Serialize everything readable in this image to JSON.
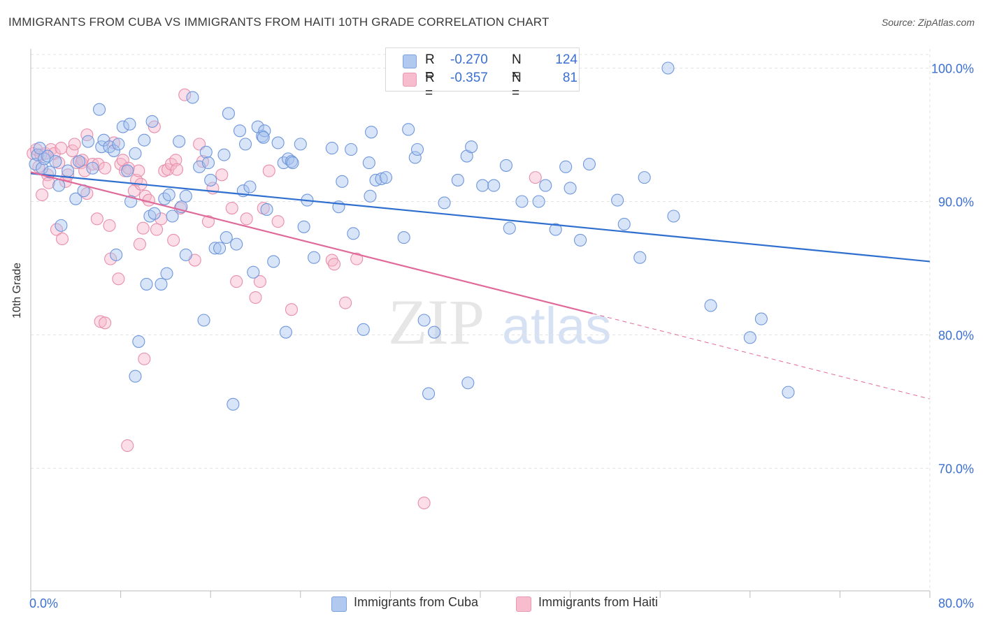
{
  "title": "IMMIGRANTS FROM CUBA VS IMMIGRANTS FROM HAITI 10TH GRADE CORRELATION CHART",
  "source": "Source: ZipAtlas.com",
  "watermark": {
    "zip": "ZIP",
    "atlas": "atlas"
  },
  "legend": {
    "r_label": "R =",
    "n_label": "N =",
    "cuba": {
      "r": "-0.270",
      "n": "124"
    },
    "haiti": {
      "r": "-0.357",
      "n": "81"
    }
  },
  "bottom_legend": {
    "cuba": "Immigrants from Cuba",
    "haiti": "Immigrants from Haiti"
  },
  "colors": {
    "cuba_fill": "#a9c4ee",
    "cuba_stroke": "#6f97dc",
    "cuba_line": "#2f6fd0",
    "haiti_fill": "#f7b6c9",
    "haiti_stroke": "#e88fab",
    "haiti_line": "#e0699a",
    "tick_label": "#3b6fd1",
    "grid": "#e3e3e3"
  },
  "chart_data": {
    "type": "scatter",
    "title": "IMMIGRANTS FROM CUBA VS IMMIGRANTS FROM HAITI 10TH GRADE CORRELATION CHART",
    "xlabel": "",
    "ylabel": "10th Grade",
    "xlim": [
      0,
      80
    ],
    "ylim": [
      60,
      102
    ],
    "x_tick_labels": [
      "0.0%",
      "80.0%"
    ],
    "y_ticks": [
      70,
      80,
      90,
      100
    ],
    "y_tick_labels": [
      "70.0%",
      "80.0%",
      "90.0%",
      "100.0%"
    ],
    "grid": true,
    "legend_position": "top-center",
    "series": [
      {
        "name": "Immigrants from Cuba",
        "r": -0.27,
        "n": 124,
        "trend": {
          "x": [
            0,
            80
          ],
          "y": [
            92.1,
            85.5
          ],
          "dashed_from": null
        },
        "points": [
          [
            0.4,
            92.8
          ],
          [
            0.6,
            93.5
          ],
          [
            0.8,
            94.0
          ],
          [
            1.0,
            92.5
          ],
          [
            1.2,
            93.2
          ],
          [
            1.5,
            93.4
          ],
          [
            1.7,
            92.2
          ],
          [
            2.2,
            93.0
          ],
          [
            2.5,
            91.2
          ],
          [
            2.7,
            88.2
          ],
          [
            3.3,
            92.3
          ],
          [
            4.0,
            90.2
          ],
          [
            4.3,
            93.0
          ],
          [
            4.7,
            90.8
          ],
          [
            5.1,
            94.5
          ],
          [
            5.5,
            92.5
          ],
          [
            6.1,
            96.9
          ],
          [
            6.3,
            94.1
          ],
          [
            6.5,
            94.6
          ],
          [
            7.0,
            94.1
          ],
          [
            7.4,
            93.8
          ],
          [
            7.6,
            86.0
          ],
          [
            7.8,
            94.3
          ],
          [
            8.2,
            95.6
          ],
          [
            8.6,
            92.3
          ],
          [
            8.8,
            95.8
          ],
          [
            8.9,
            90.0
          ],
          [
            9.3,
            93.6
          ],
          [
            9.6,
            79.5
          ],
          [
            9.3,
            76.9
          ],
          [
            10.1,
            94.6
          ],
          [
            10.3,
            83.8
          ],
          [
            10.6,
            88.9
          ],
          [
            10.8,
            96.0
          ],
          [
            11.0,
            89.1
          ],
          [
            11.6,
            83.8
          ],
          [
            11.9,
            90.2
          ],
          [
            12.1,
            84.6
          ],
          [
            12.3,
            90.5
          ],
          [
            12.6,
            88.9
          ],
          [
            13.2,
            94.5
          ],
          [
            13.4,
            89.6
          ],
          [
            13.8,
            90.4
          ],
          [
            13.8,
            86.0
          ],
          [
            14.4,
            97.8
          ],
          [
            15.0,
            92.6
          ],
          [
            15.4,
            81.1
          ],
          [
            15.6,
            93.7
          ],
          [
            15.8,
            92.9
          ],
          [
            16.0,
            91.6
          ],
          [
            16.4,
            86.5
          ],
          [
            16.8,
            86.5
          ],
          [
            17.2,
            93.5
          ],
          [
            17.4,
            87.3
          ],
          [
            17.6,
            96.6
          ],
          [
            18.0,
            74.8
          ],
          [
            18.3,
            86.8
          ],
          [
            18.6,
            95.3
          ],
          [
            18.9,
            90.8
          ],
          [
            19.1,
            94.3
          ],
          [
            19.5,
            91.1
          ],
          [
            19.8,
            84.7
          ],
          [
            20.2,
            95.6
          ],
          [
            20.6,
            94.9
          ],
          [
            20.8,
            95.3
          ],
          [
            21.0,
            89.4
          ],
          [
            21.6,
            85.5
          ],
          [
            22.0,
            94.4
          ],
          [
            22.5,
            92.9
          ],
          [
            22.9,
            93.2
          ],
          [
            23.2,
            93.0
          ],
          [
            22.7,
            80.2
          ],
          [
            24.0,
            94.3
          ],
          [
            24.3,
            88.1
          ],
          [
            24.6,
            90.1
          ],
          [
            25.2,
            85.8
          ],
          [
            26.8,
            94.0
          ],
          [
            27.4,
            89.6
          ],
          [
            27.7,
            91.5
          ],
          [
            28.5,
            93.9
          ],
          [
            28.7,
            87.6
          ],
          [
            29.6,
            80.4
          ],
          [
            30.1,
            92.9
          ],
          [
            30.2,
            90.4
          ],
          [
            30.3,
            95.2
          ],
          [
            30.7,
            91.6
          ],
          [
            31.2,
            91.7
          ],
          [
            31.6,
            91.8
          ],
          [
            33.6,
            95.4
          ],
          [
            33.2,
            87.3
          ],
          [
            34.2,
            93.3
          ],
          [
            34.4,
            93.9
          ],
          [
            35.0,
            81.1
          ],
          [
            35.4,
            75.6
          ],
          [
            35.9,
            80.2
          ],
          [
            36.8,
            89.9
          ],
          [
            38.0,
            91.6
          ],
          [
            38.8,
            93.4
          ],
          [
            39.2,
            94.1
          ],
          [
            38.9,
            76.4
          ],
          [
            40.2,
            91.2
          ],
          [
            41.2,
            91.2
          ],
          [
            42.3,
            92.7
          ],
          [
            42.6,
            88.0
          ],
          [
            43.7,
            90.0
          ],
          [
            45.2,
            90.0
          ],
          [
            45.8,
            91.2
          ],
          [
            46.7,
            87.9
          ],
          [
            47.6,
            92.6
          ],
          [
            48.0,
            91.0
          ],
          [
            48.9,
            87.1
          ],
          [
            49.7,
            92.8
          ],
          [
            52.2,
            90.1
          ],
          [
            52.8,
            88.3
          ],
          [
            54.2,
            85.8
          ],
          [
            54.6,
            91.8
          ],
          [
            56.7,
            100.0
          ],
          [
            57.2,
            88.9
          ],
          [
            60.5,
            82.2
          ],
          [
            64.0,
            79.8
          ],
          [
            65.0,
            81.2
          ],
          [
            67.4,
            75.7
          ],
          [
            20.7,
            94.8
          ],
          [
            23.3,
            92.9
          ]
        ]
      },
      {
        "name": "Immigrants from Haiti",
        "r": -0.357,
        "n": 81,
        "trend": {
          "x": [
            0,
            50,
            80
          ],
          "y": [
            92.2,
            81.6,
            75.2
          ],
          "dashed_from": 50
        },
        "points": [
          [
            0.2,
            93.6
          ],
          [
            0.5,
            93.9
          ],
          [
            0.7,
            92.6
          ],
          [
            0.9,
            93.5
          ],
          [
            1.0,
            90.5
          ],
          [
            1.3,
            93.6
          ],
          [
            1.5,
            92.0
          ],
          [
            1.6,
            91.4
          ],
          [
            1.8,
            93.9
          ],
          [
            2.1,
            93.6
          ],
          [
            2.3,
            87.9
          ],
          [
            2.5,
            92.9
          ],
          [
            2.7,
            94.0
          ],
          [
            2.8,
            87.2
          ],
          [
            3.1,
            91.5
          ],
          [
            3.3,
            92.0
          ],
          [
            3.7,
            93.8
          ],
          [
            3.9,
            94.3
          ],
          [
            4.1,
            92.9
          ],
          [
            4.5,
            92.9
          ],
          [
            4.6,
            93.1
          ],
          [
            4.8,
            92.3
          ],
          [
            5.0,
            90.6
          ],
          [
            5.0,
            95.0
          ],
          [
            5.5,
            92.8
          ],
          [
            5.9,
            88.7
          ],
          [
            6.0,
            92.8
          ],
          [
            6.2,
            81.0
          ],
          [
            6.6,
            92.5
          ],
          [
            6.6,
            80.9
          ],
          [
            7.0,
            88.2
          ],
          [
            7.1,
            85.7
          ],
          [
            7.4,
            94.4
          ],
          [
            7.8,
            84.2
          ],
          [
            8.0,
            92.8
          ],
          [
            8.2,
            93.1
          ],
          [
            8.4,
            92.3
          ],
          [
            8.6,
            71.7
          ],
          [
            8.7,
            92.5
          ],
          [
            9.2,
            90.8
          ],
          [
            9.4,
            91.6
          ],
          [
            9.6,
            92.3
          ],
          [
            9.7,
            86.8
          ],
          [
            9.8,
            91.3
          ],
          [
            10.1,
            78.2
          ],
          [
            10.2,
            90.4
          ],
          [
            10.5,
            90.1
          ],
          [
            11.0,
            95.6
          ],
          [
            11.2,
            87.9
          ],
          [
            11.6,
            88.7
          ],
          [
            11.9,
            92.3
          ],
          [
            12.2,
            92.4
          ],
          [
            12.5,
            92.8
          ],
          [
            12.7,
            87.1
          ],
          [
            12.9,
            93.1
          ],
          [
            13.3,
            89.5
          ],
          [
            13.7,
            98.0
          ],
          [
            14.6,
            85.6
          ],
          [
            15.0,
            94.3
          ],
          [
            15.3,
            93.0
          ],
          [
            15.8,
            88.5
          ],
          [
            16.2,
            91.0
          ],
          [
            17.0,
            92.0
          ],
          [
            17.9,
            89.5
          ],
          [
            18.3,
            84.0
          ],
          [
            19.2,
            88.7
          ],
          [
            20.0,
            82.8
          ],
          [
            20.4,
            84.0
          ],
          [
            20.7,
            89.5
          ],
          [
            21.2,
            92.3
          ],
          [
            22.0,
            88.5
          ],
          [
            23.2,
            81.9
          ],
          [
            26.8,
            85.6
          ],
          [
            27.0,
            85.3
          ],
          [
            28.0,
            82.4
          ],
          [
            29.0,
            85.7
          ],
          [
            32.1,
            99.9
          ],
          [
            35.0,
            67.4
          ],
          [
            44.9,
            91.8
          ],
          [
            13.0,
            92.4
          ],
          [
            10.0,
            88.0
          ]
        ]
      }
    ]
  }
}
